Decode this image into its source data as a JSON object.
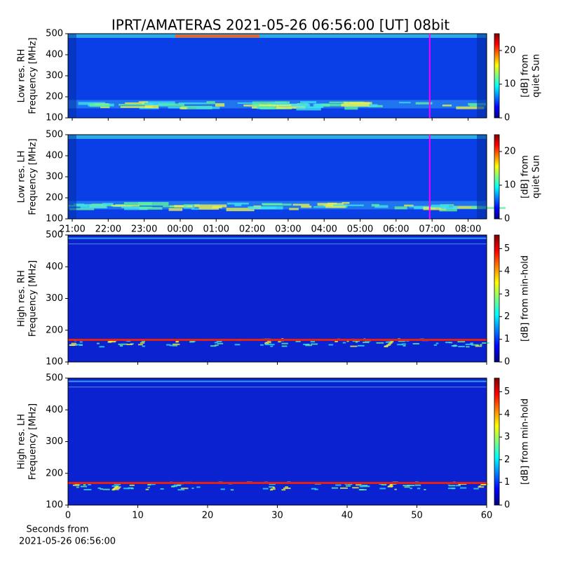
{
  "title": "IPRT/AMATERAS 2021-05-26 06:56:00 [UT]   08bit",
  "chart_data": [
    {
      "type": "heatmap",
      "y_label": [
        "Low res. RH",
        "Frequency [MHz]"
      ],
      "ylim": [
        100,
        500
      ],
      "yticks": [
        100,
        200,
        300,
        400,
        500
      ],
      "xlim": [
        "20:53",
        "08:31"
      ],
      "colormap": "jet",
      "clim": [
        0,
        25
      ],
      "cticks": [
        0,
        10,
        20
      ],
      "colorbar_label": [
        "[dB] from",
        "quiet Sun"
      ],
      "marker_x": "06:56",
      "marker_color": "#ff00ff"
    },
    {
      "type": "heatmap",
      "y_label": [
        "Low res. LH",
        "Frequency [MHz]"
      ],
      "ylim": [
        100,
        500
      ],
      "yticks": [
        100,
        200,
        300,
        400,
        500
      ],
      "xlim": [
        "20:53",
        "08:31"
      ],
      "xticks": [
        "21:00",
        "22:00",
        "23:00",
        "00:00",
        "01:00",
        "02:00",
        "03:00",
        "04:00",
        "05:00",
        "06:00",
        "07:00",
        "08:00"
      ],
      "colormap": "jet",
      "clim": [
        0,
        25
      ],
      "cticks": [
        0,
        10,
        20
      ],
      "colorbar_label": [
        "[dB] from",
        "quiet Sun"
      ],
      "marker_x": "06:56",
      "marker_color": "#ff00ff"
    },
    {
      "type": "heatmap",
      "y_label": [
        "High res. RH",
        "Frequency [MHz]"
      ],
      "ylim": [
        100,
        500
      ],
      "yticks": [
        100,
        200,
        300,
        400,
        500
      ],
      "xlim": [
        0,
        60
      ],
      "colormap": "jet",
      "clim": [
        0,
        5.6
      ],
      "cticks": [
        0,
        1,
        2,
        3,
        4,
        5
      ],
      "colorbar_label": [
        "[dB] from min-hold"
      ]
    },
    {
      "type": "heatmap",
      "y_label": [
        "High res. LH",
        "Frequency [MHz]"
      ],
      "ylim": [
        100,
        500
      ],
      "yticks": [
        100,
        200,
        300,
        400,
        500
      ],
      "xlim": [
        0,
        60
      ],
      "xticks": [
        0,
        10,
        20,
        30,
        40,
        50,
        60
      ],
      "x_label": [
        "Seconds from",
        "2021-05-26 06:56:00"
      ],
      "colormap": "jet",
      "clim": [
        0,
        5.6
      ],
      "cticks": [
        0,
        1,
        2,
        3,
        4,
        5
      ],
      "colorbar_label": [
        "[dB] from min-hold"
      ]
    }
  ]
}
